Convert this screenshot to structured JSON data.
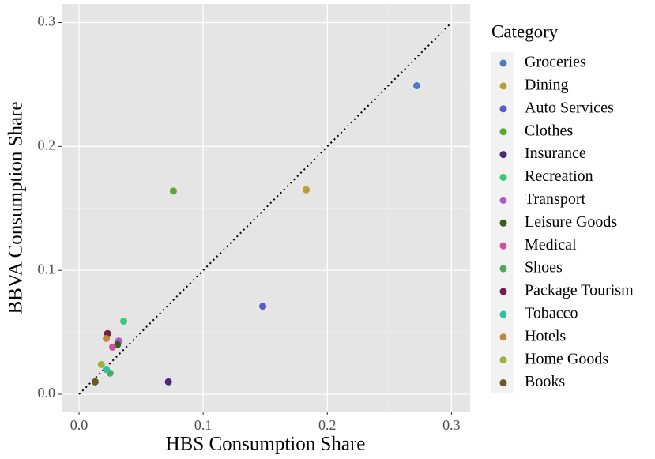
{
  "chart_data": {
    "type": "scatter",
    "x_label": "HBS Consumption Share",
    "y_label": "BBVA Consumption Share",
    "legend_title": "Category",
    "legend_position": "right",
    "grid": true,
    "identity_line": true,
    "xlim": [
      -0.014,
      0.315
    ],
    "ylim": [
      -0.014,
      0.315
    ],
    "xticks": [
      {
        "value": 0,
        "label": "0.0"
      },
      0.1,
      0.2,
      0.3
    ],
    "yticks": [
      {
        "value": 0,
        "label": "0.0"
      },
      0.1,
      0.2,
      0.3
    ],
    "series": [
      {
        "name": "Groceries",
        "color": "#4e79c9",
        "x": [
          0.272
        ],
        "values": [
          0.249
        ]
      },
      {
        "name": "Dining",
        "color": "#b8a030",
        "x": [
          0.183
        ],
        "values": [
          0.165
        ]
      },
      {
        "name": "Auto Services",
        "color": "#5a5ac8",
        "x": [
          0.148
        ],
        "values": [
          0.071
        ]
      },
      {
        "name": "Clothes",
        "color": "#5aa832",
        "x": [
          0.076
        ],
        "values": [
          0.164
        ]
      },
      {
        "name": "Insurance",
        "color": "#4a2a7a",
        "x": [
          0.072
        ],
        "values": [
          0.01
        ]
      },
      {
        "name": "Recreation",
        "color": "#3cc878",
        "x": [
          0.036
        ],
        "values": [
          0.059
        ]
      },
      {
        "name": "Transport",
        "color": "#b05ac8",
        "x": [
          0.032
        ],
        "values": [
          0.043
        ]
      },
      {
        "name": "Leisure Goods",
        "color": "#3a5a1a",
        "x": [
          0.031
        ],
        "values": [
          0.04
        ]
      },
      {
        "name": "Medical",
        "color": "#d050a0",
        "x": [
          0.027
        ],
        "values": [
          0.038
        ]
      },
      {
        "name": "Shoes",
        "color": "#50a860",
        "x": [
          0.025
        ],
        "values": [
          0.017
        ]
      },
      {
        "name": "Package Tourism",
        "color": "#7a1a4a",
        "x": [
          0.023
        ],
        "values": [
          0.049
        ]
      },
      {
        "name": "Tobacco",
        "color": "#30c0a0",
        "x": [
          0.022
        ],
        "values": [
          0.02
        ]
      },
      {
        "name": "Hotels",
        "color": "#c08840",
        "x": [
          0.022
        ],
        "values": [
          0.045
        ]
      },
      {
        "name": "Home Goods",
        "color": "#a0b040",
        "x": [
          0.018
        ],
        "values": [
          0.024
        ]
      },
      {
        "name": "Books",
        "color": "#6a5a20",
        "x": [
          0.013
        ],
        "values": [
          0.01
        ]
      }
    ]
  }
}
